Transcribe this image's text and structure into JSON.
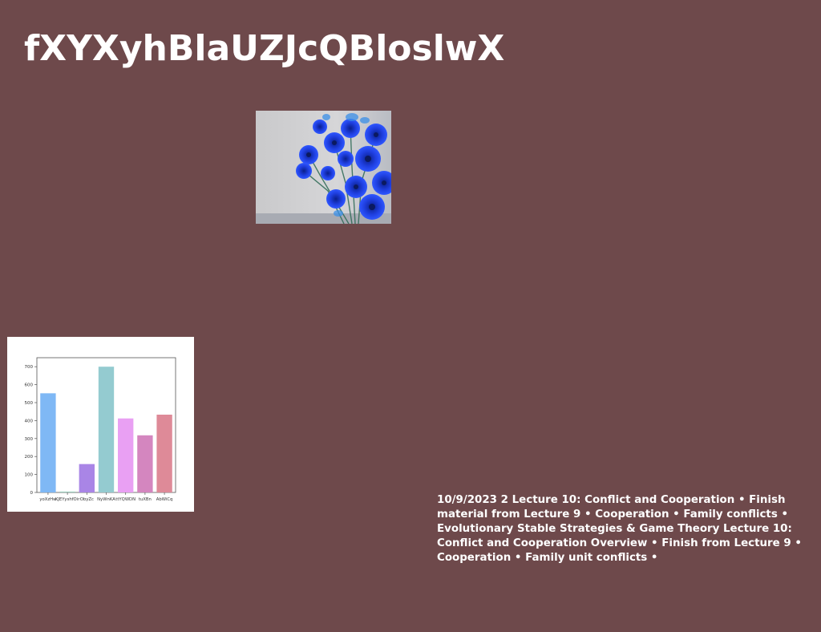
{
  "page": {
    "title": "fXYXyhBlaUZJcQBloslwX",
    "background": "#6e494b"
  },
  "photo": {
    "subject": "blue-flowers-bouquet"
  },
  "chart_data": {
    "type": "bar",
    "categories": [
      "yoXzHw",
      "KJEYyshfOir",
      "ObyZc",
      "NyWnKA",
      "ttYQWDN",
      "tuXBn",
      "AbWiCq"
    ],
    "values": [
      552,
      5,
      158,
      700,
      412,
      318,
      433
    ],
    "colors": [
      "#7fb8f5",
      "#9fd0c0",
      "#a985e6",
      "#94cbd0",
      "#e9a0f3",
      "#d486bf",
      "#de8a98"
    ],
    "ylim": [
      0,
      750
    ],
    "yticks": [
      0,
      100,
      200,
      300,
      400,
      500,
      600,
      700
    ],
    "title": "",
    "xlabel": "",
    "ylabel": "",
    "grid": false
  },
  "text_block": {
    "content": "10/9/2023 2 Lecture 10: Conflict and Cooperation • Finish material from Lecture 9 • Cooperation • Family conflicts • Evolutionary Stable Strategies & Game Theory Lecture 10: Conflict and Cooperation Overview • Finish from Lecture 9 • Cooperation • Family unit conflicts •"
  }
}
